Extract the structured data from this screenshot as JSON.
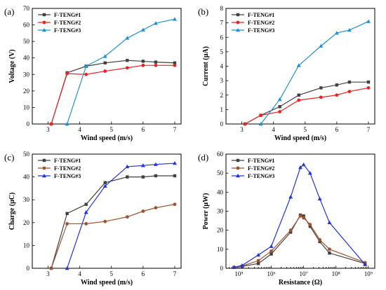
{
  "chart_data": [
    {
      "type": "line",
      "panel_label": "(a)",
      "xlabel": "Wind speed (m/s)",
      "ylabel": "Voltage (V)",
      "xlim": [
        2.5,
        7.2
      ],
      "ylim": [
        0,
        70
      ],
      "xticks": [
        3,
        4,
        5,
        6,
        7
      ],
      "yticks": [
        0,
        10,
        20,
        30,
        40,
        50,
        60,
        70
      ],
      "xscale": "linear",
      "legend": "top-left",
      "series": [
        {
          "name": "F-TENG#1",
          "color": "#404040",
          "marker": "square",
          "x": [
            3.1,
            3.6,
            4.2,
            4.8,
            5.5,
            6.0,
            6.4,
            7.0
          ],
          "y": [
            0,
            31,
            35,
            37,
            38.5,
            38,
            37.5,
            37
          ]
        },
        {
          "name": "F-TENG#2",
          "color": "#ee2222",
          "marker": "circle",
          "x": [
            3.1,
            3.6,
            4.2,
            4.8,
            5.5,
            6.0,
            6.4,
            7.0
          ],
          "y": [
            0,
            30.5,
            30,
            32,
            34,
            35.5,
            35.5,
            35.5
          ]
        },
        {
          "name": "F-TENG#3",
          "color": "#1e90d6",
          "marker": "triangle",
          "x": [
            3.6,
            4.2,
            4.8,
            5.5,
            6.0,
            6.4,
            7.0
          ],
          "y": [
            0,
            35,
            41,
            52,
            57,
            61,
            63.5
          ]
        }
      ]
    },
    {
      "type": "line",
      "panel_label": "(b)",
      "xlabel": "Wind speed (m/s)",
      "ylabel": "Current (μA)",
      "xlim": [
        2.5,
        7.2
      ],
      "ylim": [
        0,
        8
      ],
      "xticks": [
        3,
        4,
        5,
        6,
        7
      ],
      "yticks": [
        0,
        1,
        2,
        3,
        4,
        5,
        6,
        7,
        8
      ],
      "xscale": "linear",
      "legend": "top-left",
      "series": [
        {
          "name": "F-TENG#1",
          "color": "#404040",
          "marker": "square",
          "x": [
            3.1,
            3.6,
            4.2,
            4.8,
            5.5,
            6.0,
            6.4,
            7.0
          ],
          "y": [
            0,
            0.6,
            1.2,
            2.0,
            2.5,
            2.7,
            2.9,
            2.9
          ]
        },
        {
          "name": "F-TENG#2",
          "color": "#ee2222",
          "marker": "circle",
          "x": [
            3.1,
            3.6,
            4.2,
            4.8,
            5.5,
            6.0,
            6.4,
            7.0
          ],
          "y": [
            0,
            0.6,
            0.85,
            1.65,
            1.85,
            2.0,
            2.25,
            2.5
          ]
        },
        {
          "name": "F-TENG#3",
          "color": "#1e90d6",
          "marker": "triangle",
          "x": [
            3.6,
            4.2,
            4.8,
            5.5,
            6.0,
            6.4,
            7.0
          ],
          "y": [
            0,
            1.7,
            4.05,
            5.4,
            6.3,
            6.5,
            7.1
          ]
        }
      ]
    },
    {
      "type": "line",
      "panel_label": "(c)",
      "xlabel": "Wind speed (m/s)",
      "ylabel": "Charge (μC)",
      "xlim": [
        2.5,
        7.2
      ],
      "ylim": [
        0,
        50
      ],
      "xticks": [
        3,
        4,
        5,
        6,
        7
      ],
      "yticks": [
        0,
        10,
        20,
        30,
        40,
        50
      ],
      "xscale": "linear",
      "legend": "top-left",
      "series": [
        {
          "name": "F-TENG#1",
          "color": "#404040",
          "marker": "square",
          "x": [
            3.1,
            3.6,
            4.2,
            4.8,
            5.5,
            6.0,
            6.4,
            7.0
          ],
          "y": [
            0,
            24,
            28,
            37.5,
            40,
            40,
            40.5,
            40.5
          ]
        },
        {
          "name": "F-TENG#2",
          "color": "#a0522d",
          "marker": "circle",
          "x": [
            3.1,
            3.6,
            4.2,
            4.8,
            5.5,
            6.0,
            6.4,
            7.0
          ],
          "y": [
            0,
            19.5,
            19.5,
            20.5,
            22.5,
            25,
            26.5,
            28
          ]
        },
        {
          "name": "F-TENG#3",
          "color": "#2233dd",
          "marker": "triangle",
          "x": [
            3.6,
            4.2,
            4.8,
            5.5,
            6.0,
            6.4,
            7.0
          ],
          "y": [
            0,
            24.5,
            36,
            44.5,
            45,
            45.5,
            46
          ]
        }
      ]
    },
    {
      "type": "line",
      "panel_label": "(d)",
      "xlabel": "Resistance (Ω)",
      "ylabel": "Power (μW)",
      "xlim": [
        4.6,
        9.2
      ],
      "ylim": [
        0,
        60
      ],
      "xticks": [
        5,
        6,
        7,
        8,
        9
      ],
      "xtick_labels": [
        "10⁵",
        "10⁶",
        "10⁷",
        "10⁸",
        "10⁹"
      ],
      "yticks": [
        0,
        10,
        20,
        30,
        40,
        50,
        60
      ],
      "xscale": "log",
      "legend": "top-left",
      "series": [
        {
          "name": "F-TENG#1",
          "color": "#404040",
          "marker": "square",
          "x": [
            4.85,
            5.1,
            5.6,
            6.0,
            6.6,
            6.9,
            7.0,
            7.2,
            7.5,
            7.8,
            8.9
          ],
          "y": [
            0.5,
            1.0,
            2.5,
            7.5,
            19,
            28,
            27.5,
            22,
            14,
            8,
            2.5
          ]
        },
        {
          "name": "F-TENG#2",
          "color": "#a0522d",
          "marker": "circle",
          "x": [
            4.85,
            5.1,
            5.6,
            6.0,
            6.6,
            6.9,
            7.0,
            7.2,
            7.5,
            7.8,
            8.9
          ],
          "y": [
            0.5,
            1.2,
            4,
            9,
            20,
            27.5,
            26.5,
            23,
            15,
            10,
            3
          ]
        },
        {
          "name": "F-TENG#3",
          "color": "#2233dd",
          "marker": "triangle",
          "x": [
            4.85,
            5.1,
            5.6,
            6.0,
            6.6,
            6.9,
            7.0,
            7.2,
            7.5,
            7.8,
            8.9
          ],
          "y": [
            0.5,
            1.5,
            7,
            11.5,
            37.5,
            53,
            54.5,
            50,
            36.5,
            24,
            2
          ]
        }
      ]
    }
  ]
}
